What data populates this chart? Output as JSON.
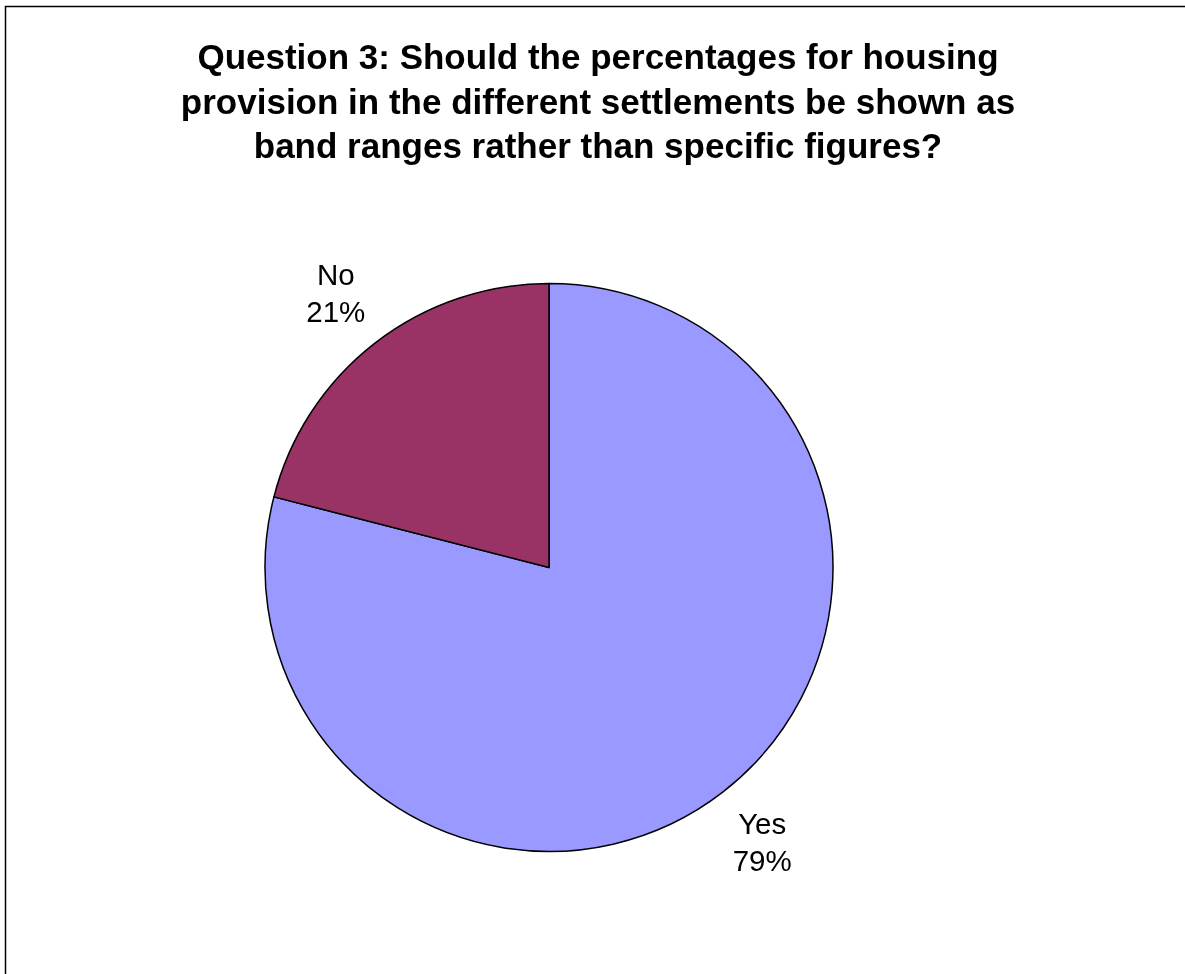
{
  "chart_data": {
    "type": "pie",
    "title": "Question 3: Should the percentages for housing provision in the different settlements be shown as band ranges rather than specific figures?",
    "categories": [
      "Yes",
      "No"
    ],
    "values": [
      79,
      21
    ],
    "colors": [
      "#9999ff",
      "#993366"
    ],
    "value_labels": [
      "79%",
      "21%"
    ]
  }
}
